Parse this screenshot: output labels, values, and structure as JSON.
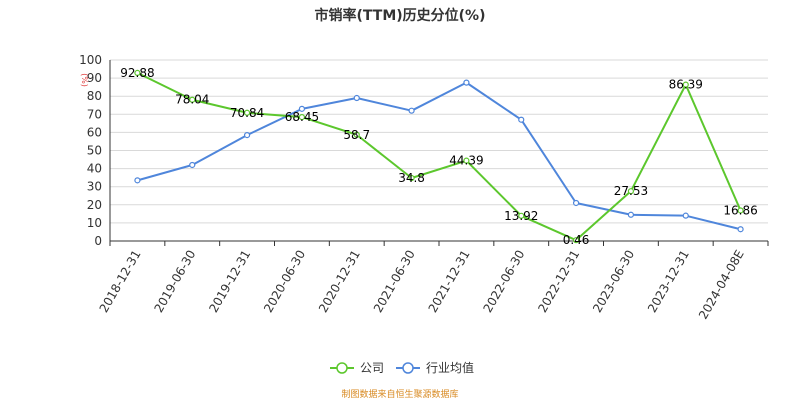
{
  "chart_data": {
    "type": "line",
    "title": "市销率(TTM)历史分位(%)",
    "ylabel": "(%)",
    "ylim": [
      0,
      100
    ],
    "yticks": [
      0,
      10,
      20,
      30,
      40,
      50,
      60,
      70,
      80,
      90,
      100
    ],
    "categories": [
      "2018-12-31",
      "2019-06-30",
      "2019-12-31",
      "2020-06-30",
      "2020-12-31",
      "2021-06-30",
      "2021-12-31",
      "2022-06-30",
      "2022-12-31",
      "2023-06-30",
      "2023-12-31",
      "2024-04-08E"
    ],
    "series": [
      {
        "name": "公司",
        "color": "#5cc72d",
        "values": [
          92.88,
          78.04,
          70.84,
          68.45,
          58.7,
          34.8,
          44.39,
          13.92,
          0.46,
          27.53,
          86.39,
          16.86
        ],
        "labels": [
          "92.88",
          "78.04",
          "70.84",
          "68.45",
          "58.7",
          "34.8",
          "44.39",
          "13.92",
          "0.46",
          "27.53",
          "86.39",
          "16.86"
        ]
      },
      {
        "name": "行业均值",
        "color": "#4f86db",
        "values": [
          33.5,
          42,
          58.5,
          73,
          79,
          72,
          87.5,
          67,
          21,
          14.5,
          14,
          6.5
        ]
      }
    ],
    "grid": true,
    "legend": "bottom-center"
  },
  "footer": {
    "source": "制图数据来自恒生聚源数据库"
  }
}
